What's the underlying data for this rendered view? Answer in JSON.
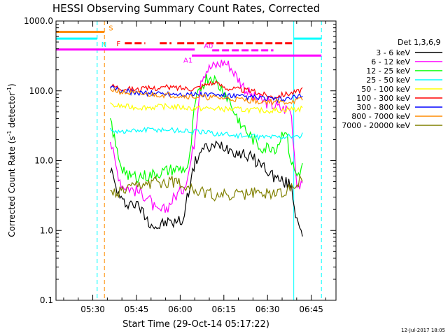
{
  "chart_data": {
    "type": "line",
    "title": "HESSI Observing Summary Count Rates, Corrected",
    "xlabel": "Start Time (29-Oct-14 05:17:22)",
    "ylabel_main": "Corrected Count Rate (s",
    "ylabel_sup1": "-1",
    "ylabel_mid": " detector",
    "ylabel_sup2": "-1",
    "ylabel_end": ")",
    "y_scale": "log",
    "ylim": [
      0.1,
      1000
    ],
    "xlim": [
      "05:17:22",
      "06:53:30"
    ],
    "y_ticks": [
      "0.1",
      "1.0",
      "10.0",
      "100.0",
      "1000.0"
    ],
    "x_ticks": [
      "05:30",
      "05:45",
      "06:00",
      "06:15",
      "06:30",
      "06:45"
    ],
    "legend_title": "Det 1,3,6,9",
    "legend_placement": "right",
    "footer_date": "12-Jul-2017 18:05",
    "series": [
      {
        "name": "3 - 6 keV",
        "color": "#000000",
        "points": [
          [
            "05:36",
            8.0
          ],
          [
            "05:38",
            4.0
          ],
          [
            "05:40",
            2.5
          ],
          [
            "05:43",
            2.5
          ],
          [
            "05:46",
            2.2
          ],
          [
            "05:49",
            1.4
          ],
          [
            "05:52",
            1.1
          ],
          [
            "05:55",
            1.3
          ],
          [
            "05:58",
            1.3
          ],
          [
            "06:01",
            1.4
          ],
          [
            "06:03",
            4.0
          ],
          [
            "06:05",
            9.0
          ],
          [
            "06:07",
            14.0
          ],
          [
            "06:09",
            15.0
          ],
          [
            "06:11",
            15.5
          ],
          [
            "06:14",
            17.0
          ],
          [
            "06:17",
            15.0
          ],
          [
            "06:20",
            13.0
          ],
          [
            "06:23",
            12.0
          ],
          [
            "06:26",
            10.0
          ],
          [
            "06:29",
            8.0
          ],
          [
            "06:32",
            6.0
          ],
          [
            "06:35",
            5.0
          ],
          [
            "06:38",
            4.5
          ],
          [
            "06:40",
            1.5
          ],
          [
            "06:42",
            1.0
          ]
        ]
      },
      {
        "name": "6 - 12 keV",
        "color": "#ff00ff",
        "points": [
          [
            "05:36",
            20.0
          ],
          [
            "05:38",
            8.0
          ],
          [
            "05:40",
            4.5
          ],
          [
            "05:43",
            4.0
          ],
          [
            "05:46",
            3.5
          ],
          [
            "05:49",
            3.0
          ],
          [
            "05:52",
            1.8
          ],
          [
            "05:55",
            2.0
          ],
          [
            "05:58",
            3.0
          ],
          [
            "06:01",
            4.0
          ],
          [
            "06:03",
            7.0
          ],
          [
            "06:05",
            20.0
          ],
          [
            "06:07",
            150.0
          ],
          [
            "06:09",
            200.0
          ],
          [
            "06:11",
            220.0
          ],
          [
            "06:13",
            240.0
          ],
          [
            "06:15",
            260.0
          ],
          [
            "06:17",
            230.0
          ],
          [
            "06:19",
            170.0
          ],
          [
            "06:21",
            130.0
          ],
          [
            "06:23",
            100.0
          ],
          [
            "06:25",
            80.0
          ],
          [
            "06:27",
            75.0
          ],
          [
            "06:29",
            70.0
          ],
          [
            "06:31",
            65.0
          ],
          [
            "06:33",
            60.0
          ],
          [
            "06:35",
            55.0
          ],
          [
            "06:38",
            55.0
          ],
          [
            "06:40",
            5.0
          ],
          [
            "06:42",
            4.0
          ]
        ]
      },
      {
        "name": "12 - 25 keV",
        "color": "#00ff00",
        "points": [
          [
            "05:36",
            40.0
          ],
          [
            "05:38",
            15.0
          ],
          [
            "05:40",
            8.0
          ],
          [
            "05:43",
            6.0
          ],
          [
            "05:46",
            6.0
          ],
          [
            "05:49",
            6.0
          ],
          [
            "05:52",
            6.5
          ],
          [
            "05:55",
            7.0
          ],
          [
            "05:58",
            7.5
          ],
          [
            "06:01",
            7.5
          ],
          [
            "06:03",
            8.0
          ],
          [
            "06:05",
            60.0
          ],
          [
            "06:07",
            110.0
          ],
          [
            "06:09",
            150.0
          ],
          [
            "06:11",
            160.0
          ],
          [
            "06:13",
            120.0
          ],
          [
            "06:15",
            100.0
          ],
          [
            "06:17",
            70.0
          ],
          [
            "06:19",
            45.0
          ],
          [
            "06:21",
            35.0
          ],
          [
            "06:23",
            25.0
          ],
          [
            "06:25",
            20.0
          ],
          [
            "06:27",
            16.0
          ],
          [
            "06:29",
            15.0
          ],
          [
            "06:31",
            16.0
          ],
          [
            "06:33",
            15.0
          ],
          [
            "06:36",
            30.0
          ],
          [
            "06:38",
            10.0
          ],
          [
            "06:40",
            6.0
          ],
          [
            "06:42",
            8.0
          ]
        ]
      },
      {
        "name": "25 - 50 keV",
        "color": "#00ffff",
        "points": [
          [
            "05:36",
            28.0
          ],
          [
            "05:40",
            26.0
          ],
          [
            "05:45",
            27.0
          ],
          [
            "05:50",
            28.0
          ],
          [
            "05:55",
            28.0
          ],
          [
            "06:00",
            27.0
          ],
          [
            "06:05",
            26.0
          ],
          [
            "06:10",
            25.0
          ],
          [
            "06:15",
            24.0
          ],
          [
            "06:20",
            23.0
          ],
          [
            "06:25",
            22.0
          ],
          [
            "06:30",
            22.0
          ],
          [
            "06:35",
            22.0
          ],
          [
            "06:38",
            23.0
          ],
          [
            "06:40",
            21.0
          ],
          [
            "06:42",
            24.0
          ]
        ]
      },
      {
        "name": "50 - 100 keV",
        "color": "#ffff00",
        "points": [
          [
            "05:36",
            62.0
          ],
          [
            "05:40",
            60.0
          ],
          [
            "05:45",
            58.0
          ],
          [
            "05:50",
            58.0
          ],
          [
            "05:55",
            60.0
          ],
          [
            "06:00",
            58.0
          ],
          [
            "06:05",
            56.0
          ],
          [
            "06:10",
            56.0
          ],
          [
            "06:15",
            55.0
          ],
          [
            "06:20",
            54.0
          ],
          [
            "06:25",
            53.0
          ],
          [
            "06:30",
            52.0
          ],
          [
            "06:35",
            53.0
          ],
          [
            "06:38",
            55.0
          ],
          [
            "06:40",
            54.0
          ],
          [
            "06:42",
            56.0
          ]
        ]
      },
      {
        "name": "100 - 300 keV",
        "color": "#ff0000",
        "points": [
          [
            "05:36",
            120.0
          ],
          [
            "05:40",
            110.0
          ],
          [
            "05:45",
            105.0
          ],
          [
            "05:50",
            108.0
          ],
          [
            "05:55",
            112.0
          ],
          [
            "06:00",
            110.0
          ],
          [
            "06:05",
            108.0
          ],
          [
            "06:08",
            120.0
          ],
          [
            "06:10",
            130.0
          ],
          [
            "06:13",
            125.0
          ],
          [
            "06:16",
            110.0
          ],
          [
            "06:20",
            105.0
          ],
          [
            "06:24",
            100.0
          ],
          [
            "06:28",
            90.0
          ],
          [
            "06:32",
            82.0
          ],
          [
            "06:36",
            90.0
          ],
          [
            "06:39",
            95.0
          ],
          [
            "06:41",
            100.0
          ],
          [
            "06:42",
            110.0
          ]
        ]
      },
      {
        "name": "300 - 800 keV",
        "color": "#0000ff",
        "points": [
          [
            "05:36",
            110.0
          ],
          [
            "05:40",
            100.0
          ],
          [
            "05:45",
            95.0
          ],
          [
            "05:50",
            92.0
          ],
          [
            "05:55",
            92.0
          ],
          [
            "06:00",
            90.0
          ],
          [
            "06:05",
            88.0
          ],
          [
            "06:10",
            88.0
          ],
          [
            "06:15",
            85.0
          ],
          [
            "06:20",
            82.0
          ],
          [
            "06:25",
            80.0
          ],
          [
            "06:30",
            77.0
          ],
          [
            "06:35",
            75.0
          ],
          [
            "06:38",
            78.0
          ],
          [
            "06:40",
            80.0
          ],
          [
            "06:42",
            85.0
          ]
        ]
      },
      {
        "name": "800 - 7000 keV",
        "color": "#ff8c00",
        "points": [
          [
            "05:36",
            105.0
          ],
          [
            "05:40",
            95.0
          ],
          [
            "05:45",
            90.0
          ],
          [
            "05:50",
            88.0
          ],
          [
            "05:55",
            87.0
          ],
          [
            "06:00",
            85.0
          ],
          [
            "06:05",
            82.0
          ],
          [
            "06:10",
            80.0
          ],
          [
            "06:15",
            78.0
          ],
          [
            "06:20",
            75.0
          ],
          [
            "06:25",
            72.0
          ],
          [
            "06:30",
            70.0
          ],
          [
            "06:35",
            68.0
          ],
          [
            "06:38",
            70.0
          ],
          [
            "06:40",
            72.0
          ],
          [
            "06:42",
            75.0
          ]
        ]
      },
      {
        "name": "7000 - 20000 keV",
        "color": "#808000",
        "points": [
          [
            "05:36",
            3.2
          ],
          [
            "05:40",
            3.5
          ],
          [
            "05:44",
            4.0
          ],
          [
            "05:48",
            4.5
          ],
          [
            "05:52",
            4.8
          ],
          [
            "05:56",
            5.0
          ],
          [
            "06:00",
            4.8
          ],
          [
            "06:04",
            4.2
          ],
          [
            "06:06",
            3.5
          ],
          [
            "06:10",
            3.3
          ],
          [
            "06:14",
            3.2
          ],
          [
            "06:18",
            3.2
          ],
          [
            "06:22",
            3.3
          ],
          [
            "06:26",
            3.4
          ],
          [
            "06:30",
            3.4
          ],
          [
            "06:34",
            3.5
          ],
          [
            "06:38",
            3.8
          ],
          [
            "06:40",
            5.0
          ],
          [
            "06:42",
            5.5
          ]
        ]
      }
    ],
    "flag_bars": [
      {
        "label": "S",
        "label_color": "#ff8c00",
        "color": "#ff8c00",
        "y": 700,
        "dashed": false,
        "segments": [
          [
            "05:17:22",
            "05:34:00"
          ]
        ]
      },
      {
        "label": "N",
        "label_color": "#00ffff",
        "color": "#00ffff",
        "y": 560,
        "dashed": false,
        "segments": [
          [
            "05:17:22",
            "05:31:30"
          ],
          [
            "06:39:00",
            "06:48:30"
          ]
        ]
      },
      {
        "label": "F",
        "label_color": "#ff0000",
        "color": "#ff0000",
        "y": 480,
        "dashed": true,
        "segments": [
          [
            "05:41:00",
            "05:48:00"
          ],
          [
            "05:53:00",
            "05:57:00"
          ],
          [
            "05:59:00",
            "06:39:00"
          ]
        ]
      },
      {
        "label": "A0",
        "label_color": "#ff00ff",
        "color": "#ff00ff",
        "y": 380,
        "dashed": true,
        "segments": [
          [
            "06:11:00",
            "06:32:00"
          ]
        ]
      },
      {
        "label": "",
        "label_color": "#ff00ff",
        "color": "#ff00ff",
        "y": 390,
        "dashed": false,
        "segments": [
          [
            "05:17:22",
            "06:05:00"
          ]
        ]
      },
      {
        "label": "A1",
        "label_color": "#ff00ff",
        "color": "#ff00ff",
        "y": 320,
        "dashed": false,
        "segments": [
          [
            "06:04:00",
            "06:48:30"
          ]
        ]
      }
    ],
    "vertical_lines": [
      {
        "t": "05:17:22",
        "color": "#00ffff",
        "dashed": false
      },
      {
        "t": "05:31:30",
        "color": "#00ffff",
        "dashed": true
      },
      {
        "t": "05:34:00",
        "color": "#ff8c00",
        "dashed": true
      },
      {
        "t": "06:39:00",
        "color": "#00ffff",
        "dashed": false
      },
      {
        "t": "06:48:30",
        "color": "#00ffff",
        "dashed": true
      }
    ]
  }
}
